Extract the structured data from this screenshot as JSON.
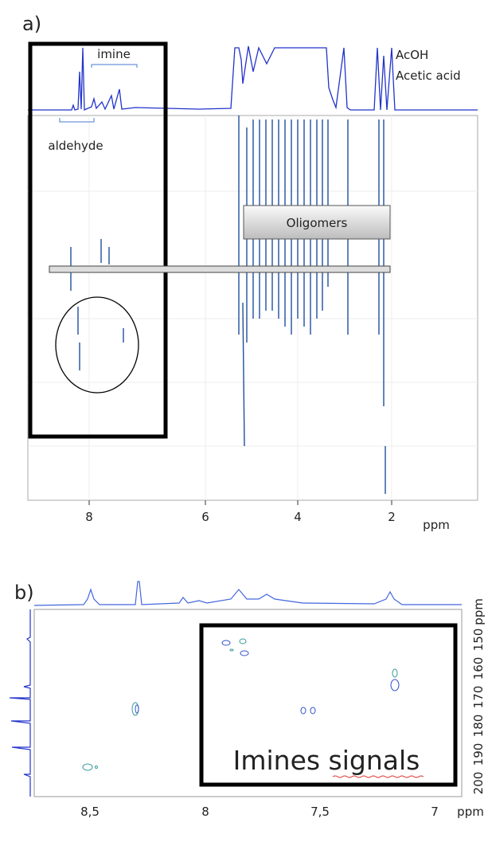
{
  "panel_a": {
    "label": "a)",
    "annotations": {
      "imine": "imine",
      "aldehyde": "aldehyde",
      "acoh": "AcOH",
      "acetic_acid": "Acetic acid",
      "oligomers": "Oligomers"
    },
    "x_ticks": [
      "8",
      "6",
      "4",
      "2"
    ],
    "x_unit": "ppm"
  },
  "panel_b": {
    "label": "b)",
    "x_ticks": [
      "8,5",
      "8",
      "7,5",
      "7"
    ],
    "x_unit": "ppm",
    "y_ticks": [
      "150",
      "160",
      "170",
      "180",
      "190",
      "200"
    ],
    "y_unit": "ppm",
    "annotation": "Imines signals"
  }
}
